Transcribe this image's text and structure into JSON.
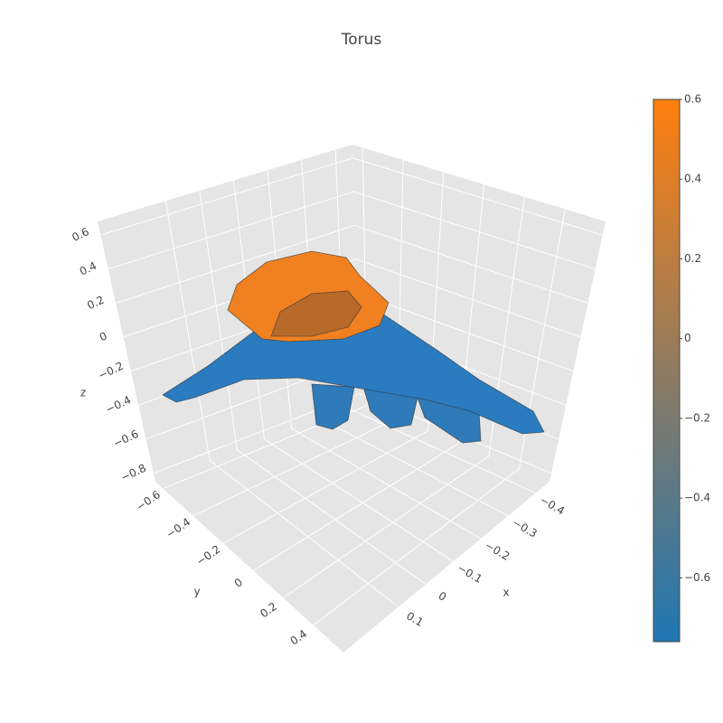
{
  "chart_data": {
    "type": "mesh3d",
    "title": "Torus",
    "xaxis_title": "x",
    "yaxis_title": "y",
    "zaxis_title": "z",
    "xlim": [
      -0.45,
      0.3
    ],
    "ylim": [
      -0.65,
      0.6
    ],
    "zlim": [
      -0.85,
      0.68
    ],
    "xticks": [
      {
        "value": -0.4,
        "label": "−0.4"
      },
      {
        "value": -0.3,
        "label": "−0.3"
      },
      {
        "value": -0.2,
        "label": "−0.2"
      },
      {
        "value": -0.1,
        "label": "−0.1"
      },
      0,
      0.1
    ],
    "yticks": [
      {
        "value": -0.6,
        "label": "−0.6"
      },
      {
        "value": -0.4,
        "label": "−0.4"
      },
      {
        "value": -0.2,
        "label": "−0.2"
      },
      0,
      0.2,
      0.4
    ],
    "zticks": [
      {
        "value": -0.8,
        "label": "−0.8"
      },
      {
        "value": -0.6,
        "label": "−0.6"
      },
      {
        "value": -0.4,
        "label": "−0.4"
      },
      {
        "value": -0.2,
        "label": "−0.2"
      },
      0,
      0.2,
      0.4,
      0.6
    ],
    "clim": [
      -0.76,
      0.6
    ],
    "cticks": [
      {
        "value": -0.6,
        "label": "−0.6"
      },
      {
        "value": -0.4,
        "label": "−0.4"
      },
      {
        "value": -0.2,
        "label": "−0.2"
      },
      0,
      0.2,
      0.4,
      0.6
    ],
    "colorscale": [
      "#1f77b4",
      "#ff7f0e"
    ],
    "grid": true
  }
}
